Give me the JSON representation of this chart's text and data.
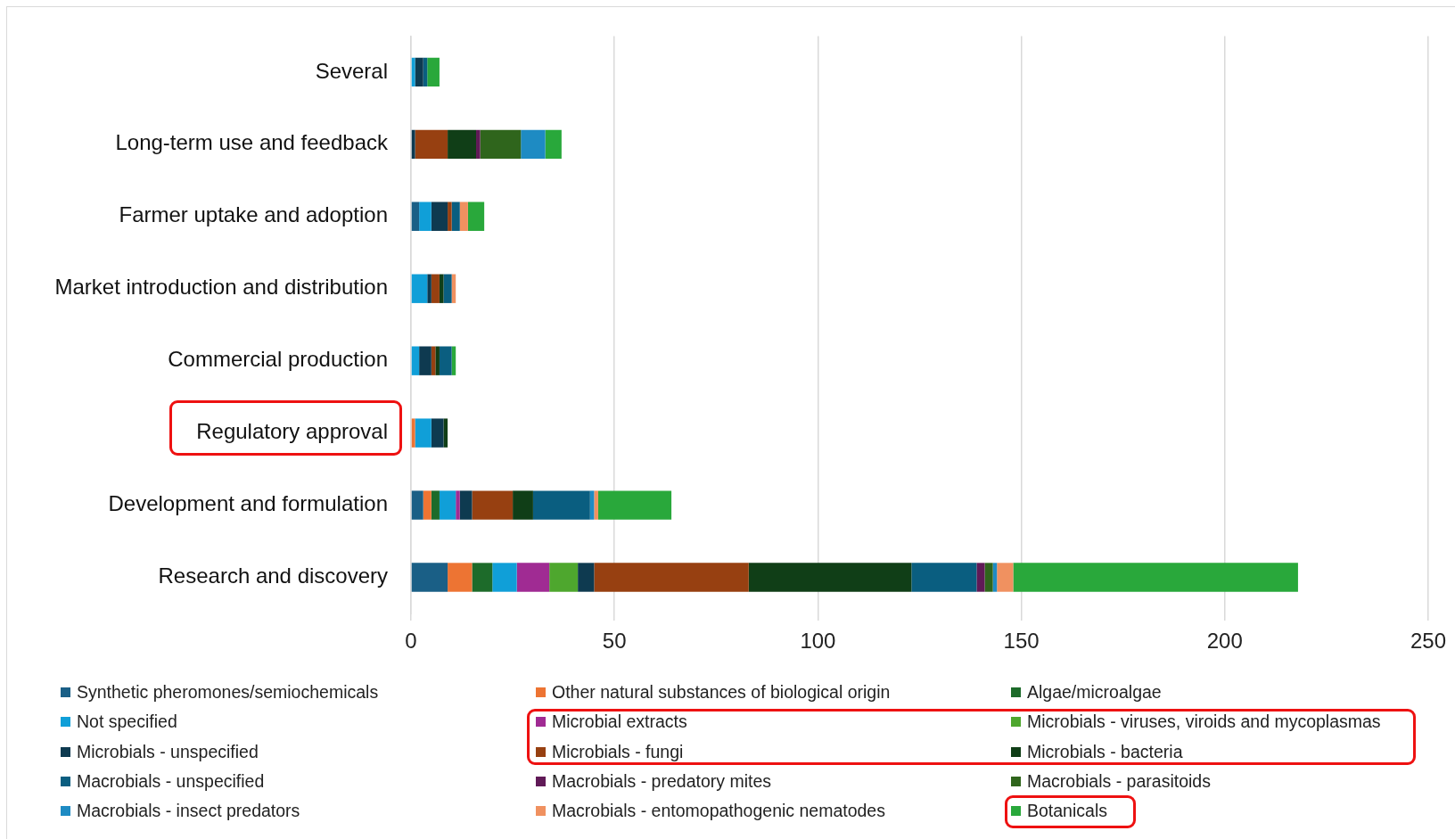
{
  "chart_data": {
    "type": "bar",
    "orientation": "horizontal",
    "stacked": true,
    "grid": "x",
    "legend": "bottom",
    "categories": [
      "Several",
      "Long-term use and feedback",
      "Farmer uptake and adoption",
      "Market introduction and distribution",
      "Commercial production",
      "Regulatory approval",
      "Development and formulation",
      "Research and discovery"
    ],
    "xlim": [
      0,
      250
    ],
    "xticks": [
      0,
      50,
      100,
      150,
      200,
      250
    ],
    "series": [
      {
        "name": "Synthetic pheromones/semiochemicals",
        "color": "#1a5f86",
        "values": [
          null,
          null,
          2,
          null,
          null,
          null,
          3,
          9
        ]
      },
      {
        "name": "Other natural substances of biological origin",
        "color": "#ed7433",
        "values": [
          null,
          null,
          null,
          null,
          null,
          1,
          2,
          6
        ]
      },
      {
        "name": "Algae/microalgae",
        "color": "#1d6b2a",
        "values": [
          null,
          null,
          null,
          null,
          null,
          null,
          2,
          5
        ]
      },
      {
        "name": "Not specified",
        "color": "#109fd8",
        "values": [
          1,
          null,
          3,
          4,
          2,
          4,
          4,
          6
        ]
      },
      {
        "name": "Microbial extracts",
        "color": "#a02b93",
        "values": [
          null,
          null,
          null,
          null,
          null,
          null,
          1,
          8
        ]
      },
      {
        "name": "Microbials - viruses, viroids and mycoplasmas",
        "color": "#4ea72e",
        "values": [
          null,
          null,
          null,
          null,
          null,
          null,
          null,
          7
        ]
      },
      {
        "name": "Microbials - unspecified",
        "color": "#0e3a50",
        "values": [
          2,
          1,
          4,
          1,
          3,
          3,
          3,
          4
        ]
      },
      {
        "name": "Microbials - fungi",
        "color": "#974011",
        "values": [
          null,
          8,
          1,
          2,
          1,
          null,
          10,
          38
        ]
      },
      {
        "name": "Microbials - bacteria",
        "color": "#103e17",
        "values": [
          null,
          7,
          null,
          1,
          1,
          1,
          5,
          40
        ]
      },
      {
        "name": "Macrobials - unspecified",
        "color": "#0a5e80",
        "values": [
          1,
          null,
          2,
          2,
          3,
          null,
          14,
          16
        ]
      },
      {
        "name": "Macrobials - predatory mites",
        "color": "#601a57",
        "values": [
          null,
          1,
          null,
          null,
          null,
          null,
          null,
          2
        ]
      },
      {
        "name": "Macrobials - parasitoids",
        "color": "#2f651c",
        "values": [
          null,
          10,
          null,
          null,
          null,
          null,
          null,
          2
        ]
      },
      {
        "name": "Macrobials - insect predators",
        "color": "#1e8bc3",
        "values": [
          null,
          6,
          null,
          null,
          null,
          null,
          1,
          1
        ]
      },
      {
        "name": "Macrobials - entomopathogenic nematodes",
        "color": "#f09160",
        "values": [
          null,
          null,
          2,
          1,
          null,
          null,
          1,
          4
        ]
      },
      {
        "name": "Botanicals",
        "color": "#29a83b",
        "values": [
          3,
          4,
          4,
          null,
          1,
          null,
          18,
          70
        ]
      }
    ]
  }
}
